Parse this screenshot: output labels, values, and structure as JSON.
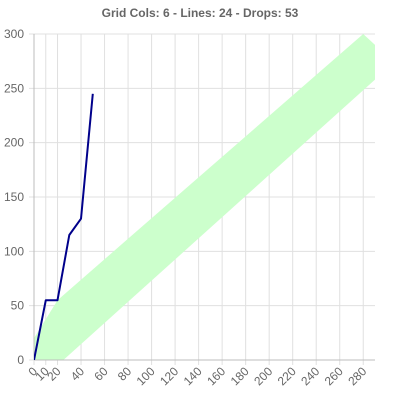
{
  "chart_data": {
    "type": "line",
    "title": "Grid Cols: 6 - Lines: 24 - Drops: 53",
    "xlabel": "",
    "ylabel": "",
    "xlim": [
      0,
      290
    ],
    "ylim": [
      0,
      300
    ],
    "x_ticks": [
      0,
      10,
      20,
      40,
      60,
      80,
      100,
      120,
      140,
      160,
      180,
      200,
      220,
      240,
      260,
      280
    ],
    "y_ticks": [
      0,
      50,
      100,
      150,
      200,
      250,
      300
    ],
    "grid": true,
    "legend": "none",
    "series": [
      {
        "values_xy": [
          [
            0,
            0
          ],
          [
            10,
            55
          ],
          [
            20,
            55
          ],
          [
            30,
            115
          ],
          [
            40,
            130
          ],
          [
            50,
            245
          ]
        ],
        "color": "#00008b"
      }
    ],
    "band": {
      "color": "#ccffcc",
      "polygon_xy": [
        [
          0,
          20
        ],
        [
          20,
          55
        ],
        [
          280,
          300
        ],
        [
          290,
          290
        ],
        [
          290,
          258
        ],
        [
          25,
          0
        ],
        [
          0,
          0
        ]
      ]
    }
  }
}
